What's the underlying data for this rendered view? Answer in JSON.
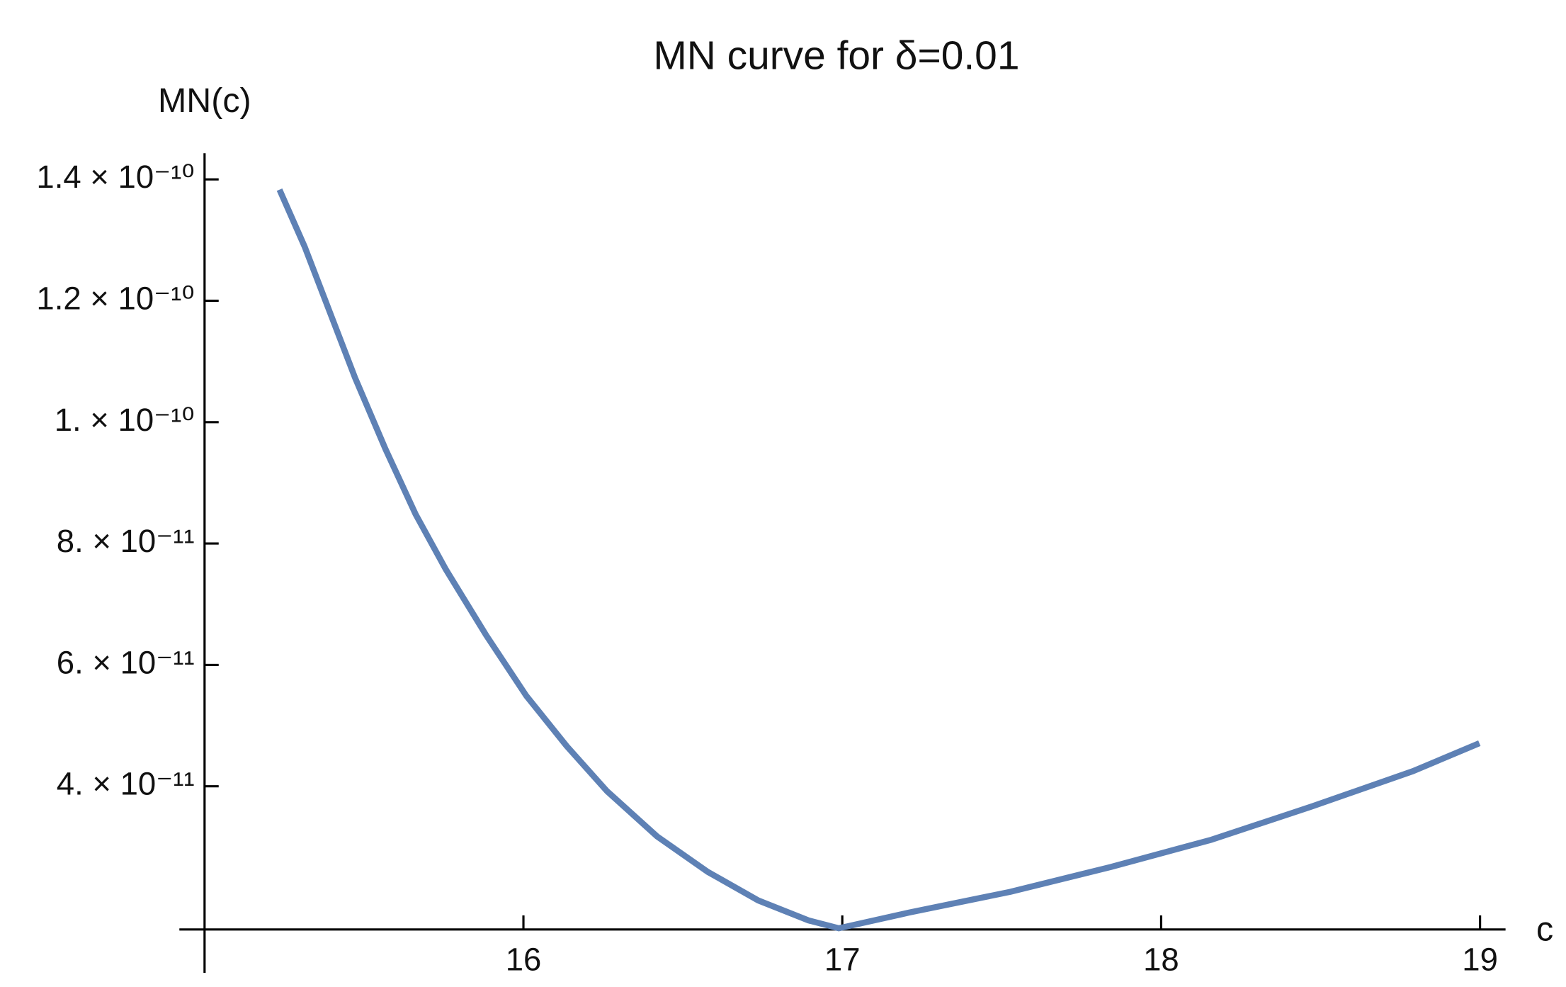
{
  "chart_data": {
    "type": "line",
    "title": "MN curve for δ=0.01",
    "x_label": "c",
    "y_label": "MN(c)",
    "xlim": [
      15.0,
      19.08
    ],
    "ylim": [
      1.64e-11,
      1.443e-10
    ],
    "xticks": [
      16,
      17,
      18,
      19
    ],
    "yticks": [
      {
        "value": 4e-11,
        "label": "4. × 10⁻¹¹"
      },
      {
        "value": 6e-11,
        "label": "6. × 10⁻¹¹"
      },
      {
        "value": 8e-11,
        "label": "8. × 10⁻¹¹"
      },
      {
        "value": 1e-10,
        "label": "1. × 10⁻¹⁰"
      },
      {
        "value": 1.2e-10,
        "label": "1.2 × 10⁻¹⁰"
      },
      {
        "value": 1.4e-10,
        "label": "1.4 × 10⁻¹⁰"
      }
    ],
    "series": [
      {
        "color": "#5e81b5",
        "x": [
          15.235,
          15.314,
          15.393,
          15.472,
          15.567,
          15.662,
          15.757,
          15.883,
          16.009,
          16.136,
          16.262,
          16.42,
          16.578,
          16.736,
          16.894,
          16.989,
          17.21,
          17.526,
          17.842,
          18.158,
          18.474,
          18.79,
          18.998
        ],
        "values": [
          1.383e-10,
          1.289e-10,
          1.181e-10,
          1.073e-10,
          9.56e-11,
          8.48e-11,
          7.57e-11,
          6.49e-11,
          5.49e-11,
          4.66e-11,
          3.92e-11,
          3.17e-11,
          2.59e-11,
          2.12e-11,
          1.79e-11,
          1.66e-11,
          1.92e-11,
          2.26e-11,
          2.67e-11,
          3.12e-11,
          3.67e-11,
          4.25e-11,
          4.71e-11
        ]
      }
    ]
  }
}
